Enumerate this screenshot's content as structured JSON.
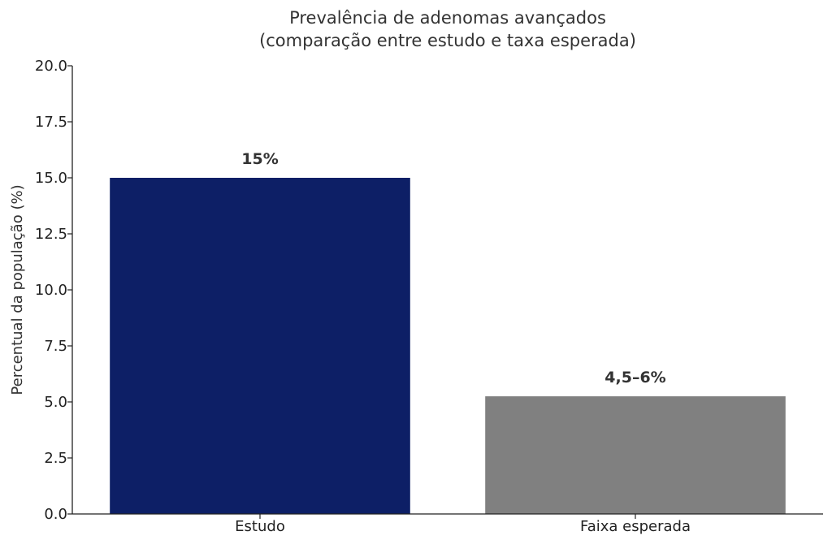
{
  "chart_data": {
    "type": "bar",
    "title": "Prevalência de adenomas avançados",
    "subtitle": "(comparação entre estudo e taxa esperada)",
    "xlabel": "",
    "ylabel": "Percentual da população (%)",
    "ylim": [
      0,
      20
    ],
    "yticks": [
      "0.0",
      "2.5",
      "5.0",
      "7.5",
      "10.0",
      "12.5",
      "15.0",
      "17.5",
      "20.0"
    ],
    "categories": [
      "Estudo",
      "Faixa esperada"
    ],
    "values": [
      15,
      5.25
    ],
    "data_labels": [
      "15%",
      "4,5–6%"
    ],
    "colors": [
      "#0d1f66",
      "#808080"
    ],
    "grid": false
  }
}
